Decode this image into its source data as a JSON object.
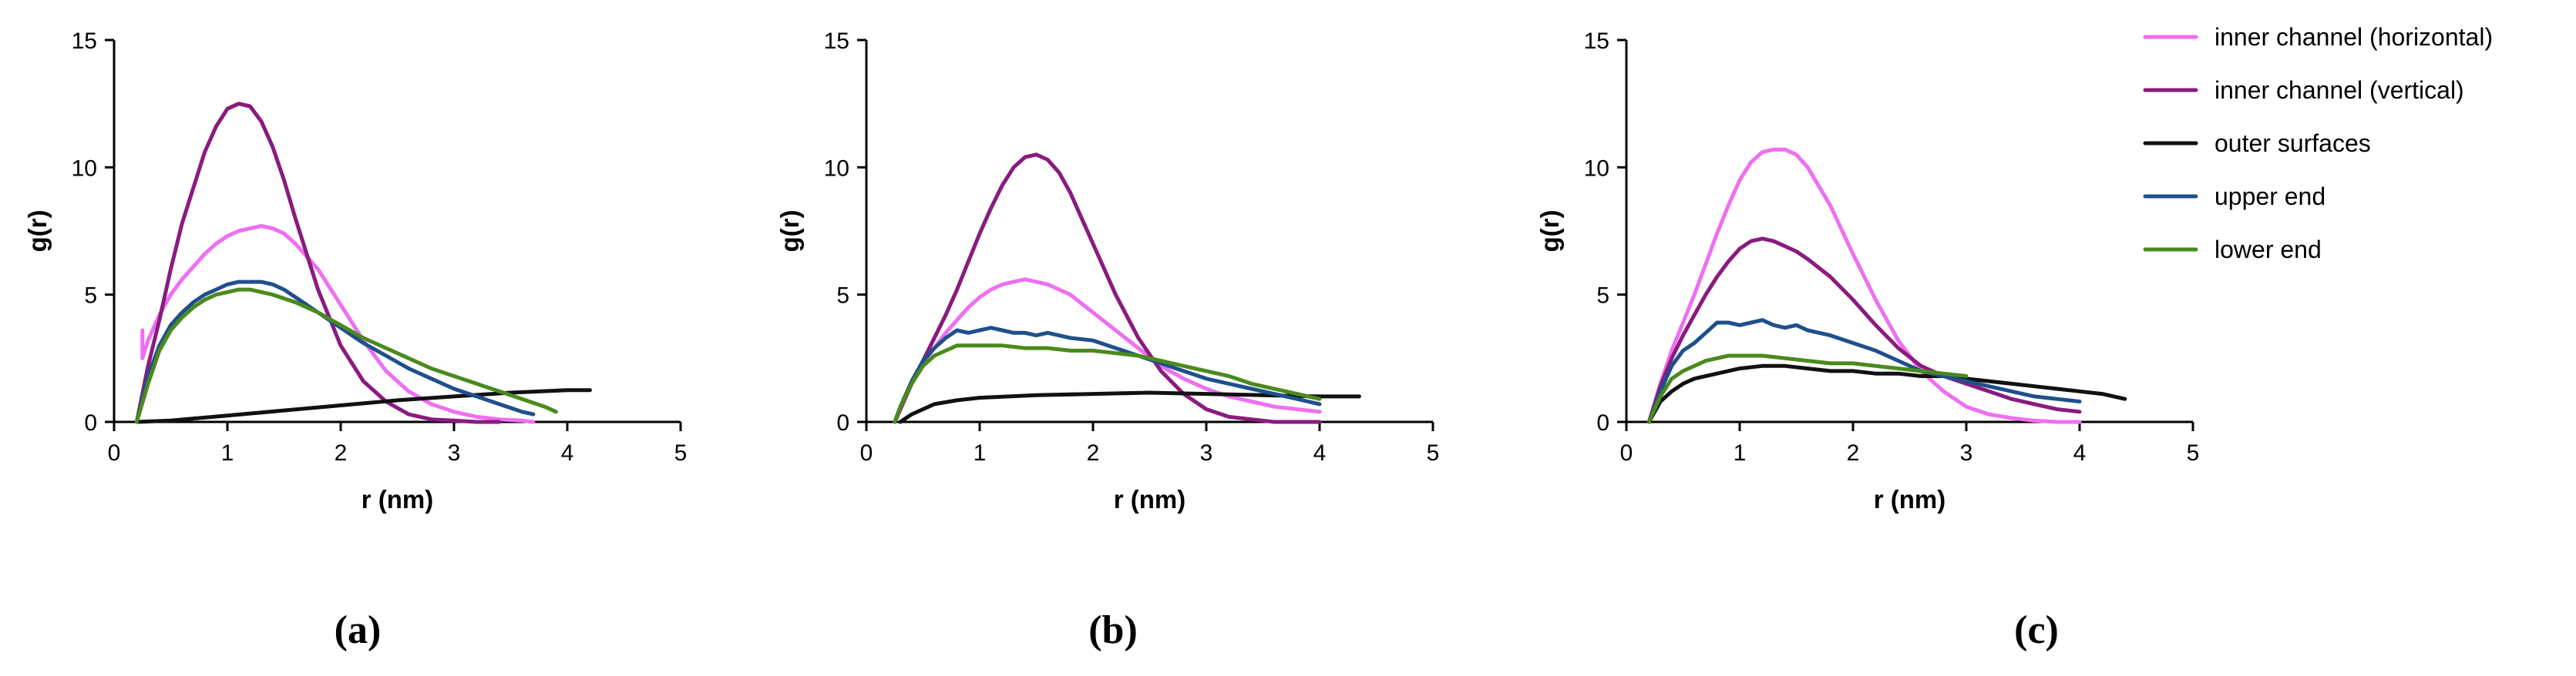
{
  "chart_data": [
    {
      "type": "line",
      "panel_label": "(a)",
      "xlabel": "r (nm)",
      "ylabel": "g(r)",
      "xlim": [
        0,
        5
      ],
      "ylim": [
        0,
        15
      ],
      "xticks": [
        "0",
        "1",
        "2",
        "3",
        "4",
        "5"
      ],
      "yticks": [
        "0",
        "5",
        "10",
        "15"
      ],
      "series": [
        {
          "name": "inner channel (horizontal)",
          "x": [
            0.25,
            0.25,
            0.3,
            0.4,
            0.5,
            0.6,
            0.7,
            0.8,
            0.9,
            1.0,
            1.1,
            1.2,
            1.3,
            1.4,
            1.5,
            1.6,
            1.8,
            2.0,
            2.2,
            2.4,
            2.6,
            2.8,
            3.0,
            3.2,
            3.4,
            3.6,
            3.7
          ],
          "y": [
            3.6,
            2.5,
            3.2,
            4.2,
            5.0,
            5.6,
            6.1,
            6.6,
            7.0,
            7.3,
            7.5,
            7.6,
            7.7,
            7.6,
            7.4,
            7.0,
            6.0,
            4.6,
            3.2,
            2.0,
            1.2,
            0.7,
            0.4,
            0.2,
            0.1,
            0.05,
            0.0
          ]
        },
        {
          "name": "inner channel (vertical)",
          "x": [
            0.2,
            0.3,
            0.4,
            0.5,
            0.6,
            0.7,
            0.8,
            0.9,
            1.0,
            1.1,
            1.2,
            1.3,
            1.4,
            1.5,
            1.6,
            1.8,
            2.0,
            2.2,
            2.4,
            2.6,
            2.8,
            3.0,
            3.2,
            3.4
          ],
          "y": [
            0.0,
            2.2,
            4.0,
            6.0,
            7.8,
            9.2,
            10.6,
            11.6,
            12.3,
            12.5,
            12.4,
            11.8,
            10.8,
            9.5,
            8.0,
            5.2,
            3.0,
            1.6,
            0.8,
            0.3,
            0.1,
            0.05,
            0.0,
            0.0
          ]
        },
        {
          "name": "outer surfaces",
          "x": [
            0.2,
            0.5,
            1.0,
            1.5,
            2.0,
            2.5,
            3.0,
            3.5,
            4.0,
            4.2
          ],
          "y": [
            0.0,
            0.05,
            0.25,
            0.45,
            0.65,
            0.85,
            1.0,
            1.15,
            1.25,
            1.25
          ]
        },
        {
          "name": "upper end",
          "x": [
            0.2,
            0.3,
            0.4,
            0.5,
            0.6,
            0.7,
            0.8,
            0.9,
            1.0,
            1.1,
            1.2,
            1.3,
            1.4,
            1.5,
            1.6,
            1.8,
            2.0,
            2.2,
            2.4,
            2.6,
            2.8,
            3.0,
            3.2,
            3.4,
            3.6,
            3.7
          ],
          "y": [
            0.0,
            1.8,
            3.0,
            3.8,
            4.3,
            4.7,
            5.0,
            5.2,
            5.4,
            5.5,
            5.5,
            5.5,
            5.4,
            5.2,
            4.9,
            4.3,
            3.7,
            3.1,
            2.6,
            2.1,
            1.7,
            1.3,
            1.0,
            0.7,
            0.4,
            0.3
          ]
        },
        {
          "name": "lower end",
          "x": [
            0.2,
            0.3,
            0.4,
            0.5,
            0.6,
            0.7,
            0.8,
            0.9,
            1.0,
            1.1,
            1.2,
            1.4,
            1.6,
            1.8,
            2.0,
            2.2,
            2.4,
            2.6,
            2.8,
            3.0,
            3.2,
            3.4,
            3.6,
            3.8,
            3.9
          ],
          "y": [
            0.0,
            1.5,
            2.8,
            3.6,
            4.1,
            4.5,
            4.8,
            5.0,
            5.1,
            5.2,
            5.2,
            5.0,
            4.7,
            4.3,
            3.8,
            3.3,
            2.9,
            2.5,
            2.1,
            1.8,
            1.5,
            1.2,
            0.9,
            0.6,
            0.4
          ]
        }
      ]
    },
    {
      "type": "line",
      "panel_label": "(b)",
      "xlabel": "r (nm)",
      "ylabel": "g(r)",
      "xlim": [
        0,
        5
      ],
      "ylim": [
        0,
        15
      ],
      "xticks": [
        "0",
        "1",
        "2",
        "3",
        "4",
        "5"
      ],
      "yticks": [
        "0",
        "5",
        "10",
        "15"
      ],
      "series": [
        {
          "name": "inner channel (horizontal)",
          "x": [
            0.25,
            0.3,
            0.4,
            0.5,
            0.6,
            0.7,
            0.8,
            0.9,
            1.0,
            1.1,
            1.2,
            1.3,
            1.4,
            1.5,
            1.6,
            1.8,
            2.0,
            2.2,
            2.4,
            2.6,
            2.8,
            3.0,
            3.2,
            3.4,
            3.6,
            3.8,
            4.0
          ],
          "y": [
            0.0,
            0.5,
            1.5,
            2.3,
            2.9,
            3.5,
            4.0,
            4.5,
            4.9,
            5.2,
            5.4,
            5.5,
            5.6,
            5.5,
            5.4,
            5.0,
            4.3,
            3.6,
            2.9,
            2.2,
            1.7,
            1.3,
            1.0,
            0.8,
            0.6,
            0.5,
            0.4
          ]
        },
        {
          "name": "inner channel (vertical)",
          "x": [
            0.25,
            0.3,
            0.4,
            0.5,
            0.6,
            0.7,
            0.8,
            0.9,
            1.0,
            1.1,
            1.2,
            1.3,
            1.4,
            1.5,
            1.6,
            1.7,
            1.8,
            2.0,
            2.2,
            2.4,
            2.6,
            2.8,
            3.0,
            3.2,
            3.4,
            3.6,
            3.8,
            4.0
          ],
          "y": [
            0.0,
            0.5,
            1.5,
            2.4,
            3.3,
            4.2,
            5.2,
            6.3,
            7.4,
            8.4,
            9.3,
            10.0,
            10.4,
            10.5,
            10.3,
            9.8,
            9.0,
            7.0,
            5.0,
            3.3,
            2.0,
            1.1,
            0.5,
            0.2,
            0.1,
            0.0,
            0.0,
            0.0
          ]
        },
        {
          "name": "outer surfaces",
          "x": [
            0.3,
            0.4,
            0.5,
            0.6,
            0.8,
            1.0,
            1.5,
            2.0,
            2.5,
            3.0,
            3.5,
            4.0,
            4.35
          ],
          "y": [
            0.0,
            0.3,
            0.5,
            0.7,
            0.85,
            0.95,
            1.05,
            1.1,
            1.15,
            1.1,
            1.05,
            1.0,
            1.0
          ]
        },
        {
          "name": "upper end",
          "x": [
            0.25,
            0.3,
            0.4,
            0.5,
            0.6,
            0.7,
            0.8,
            0.9,
            1.0,
            1.1,
            1.2,
            1.3,
            1.4,
            1.5,
            1.6,
            1.8,
            2.0,
            2.2,
            2.4,
            2.6,
            2.8,
            3.0,
            3.2,
            3.4,
            3.6,
            3.8,
            4.0
          ],
          "y": [
            0.0,
            0.6,
            1.6,
            2.4,
            2.9,
            3.3,
            3.6,
            3.5,
            3.6,
            3.7,
            3.6,
            3.5,
            3.5,
            3.4,
            3.5,
            3.3,
            3.2,
            2.9,
            2.6,
            2.3,
            2.0,
            1.7,
            1.5,
            1.3,
            1.1,
            0.9,
            0.7
          ]
        },
        {
          "name": "lower end",
          "x": [
            0.25,
            0.3,
            0.4,
            0.5,
            0.6,
            0.7,
            0.8,
            0.9,
            1.0,
            1.2,
            1.4,
            1.6,
            1.8,
            2.0,
            2.2,
            2.4,
            2.6,
            2.8,
            3.0,
            3.2,
            3.4,
            3.6,
            3.8,
            4.0
          ],
          "y": [
            0.0,
            0.6,
            1.5,
            2.2,
            2.6,
            2.8,
            3.0,
            3.0,
            3.0,
            3.0,
            2.9,
            2.9,
            2.8,
            2.8,
            2.7,
            2.6,
            2.4,
            2.2,
            2.0,
            1.8,
            1.5,
            1.3,
            1.1,
            0.9
          ]
        }
      ]
    },
    {
      "type": "line",
      "panel_label": "(c)",
      "xlabel": "r (nm)",
      "ylabel": "g(r)",
      "xlim": [
        0,
        5
      ],
      "ylim": [
        0,
        15
      ],
      "xticks": [
        "0",
        "1",
        "2",
        "3",
        "4",
        "5"
      ],
      "yticks": [
        "0",
        "5",
        "10",
        "15"
      ],
      "series": [
        {
          "name": "inner channel (horizontal)",
          "x": [
            0.2,
            0.3,
            0.4,
            0.5,
            0.6,
            0.7,
            0.8,
            0.9,
            1.0,
            1.1,
            1.2,
            1.3,
            1.4,
            1.5,
            1.6,
            1.8,
            2.0,
            2.2,
            2.4,
            2.6,
            2.8,
            3.0,
            3.2,
            3.4,
            3.6,
            3.8,
            4.0
          ],
          "y": [
            0.0,
            1.5,
            2.8,
            3.9,
            5.0,
            6.2,
            7.4,
            8.5,
            9.5,
            10.2,
            10.6,
            10.7,
            10.7,
            10.5,
            10.0,
            8.5,
            6.6,
            4.8,
            3.2,
            2.0,
            1.2,
            0.6,
            0.3,
            0.15,
            0.05,
            0.0,
            0.0
          ]
        },
        {
          "name": "inner channel (vertical)",
          "x": [
            0.2,
            0.3,
            0.4,
            0.5,
            0.6,
            0.7,
            0.8,
            0.9,
            1.0,
            1.1,
            1.2,
            1.3,
            1.4,
            1.5,
            1.6,
            1.8,
            2.0,
            2.2,
            2.4,
            2.6,
            2.8,
            3.0,
            3.2,
            3.4,
            3.6,
            3.8,
            4.0
          ],
          "y": [
            0.0,
            1.4,
            2.5,
            3.4,
            4.2,
            5.0,
            5.7,
            6.3,
            6.8,
            7.1,
            7.2,
            7.1,
            6.9,
            6.7,
            6.4,
            5.7,
            4.8,
            3.8,
            2.9,
            2.2,
            1.8,
            1.5,
            1.2,
            0.9,
            0.7,
            0.5,
            0.4
          ]
        },
        {
          "name": "outer surfaces",
          "x": [
            0.2,
            0.3,
            0.4,
            0.5,
            0.6,
            0.8,
            1.0,
            1.2,
            1.4,
            1.6,
            1.8,
            2.0,
            2.2,
            2.4,
            2.6,
            2.8,
            3.0,
            3.2,
            3.4,
            3.6,
            3.8,
            4.0,
            4.2,
            4.4
          ],
          "y": [
            0.0,
            0.8,
            1.2,
            1.5,
            1.7,
            1.9,
            2.1,
            2.2,
            2.2,
            2.1,
            2.0,
            2.0,
            1.9,
            1.9,
            1.8,
            1.8,
            1.7,
            1.6,
            1.5,
            1.4,
            1.3,
            1.2,
            1.1,
            0.9
          ]
        },
        {
          "name": "upper end",
          "x": [
            0.2,
            0.3,
            0.4,
            0.5,
            0.6,
            0.7,
            0.8,
            0.9,
            1.0,
            1.1,
            1.2,
            1.3,
            1.4,
            1.5,
            1.6,
            1.8,
            2.0,
            2.2,
            2.4,
            2.6,
            2.8,
            3.0,
            3.2,
            3.4,
            3.6,
            3.8,
            4.0
          ],
          "y": [
            0.0,
            1.2,
            2.2,
            2.8,
            3.1,
            3.5,
            3.9,
            3.9,
            3.8,
            3.9,
            4.0,
            3.8,
            3.7,
            3.8,
            3.6,
            3.4,
            3.1,
            2.8,
            2.4,
            2.0,
            1.8,
            1.6,
            1.4,
            1.2,
            1.0,
            0.9,
            0.8
          ]
        },
        {
          "name": "lower end",
          "x": [
            0.2,
            0.3,
            0.4,
            0.5,
            0.6,
            0.7,
            0.8,
            0.9,
            1.0,
            1.2,
            1.4,
            1.6,
            1.8,
            2.0,
            2.2,
            2.4,
            2.6,
            2.8,
            3.0
          ],
          "y": [
            0.0,
            1.0,
            1.7,
            2.0,
            2.2,
            2.4,
            2.5,
            2.6,
            2.6,
            2.6,
            2.5,
            2.4,
            2.3,
            2.3,
            2.2,
            2.1,
            2.0,
            1.9,
            1.8
          ]
        }
      ]
    }
  ],
  "legend": {
    "position": "top-right",
    "items": [
      {
        "label": "inner channel (horizontal)",
        "color": "#ee6ff0"
      },
      {
        "label": "inner channel (vertical)",
        "color": "#8a1b7f"
      },
      {
        "label": "outer surfaces",
        "color": "#111111"
      },
      {
        "label": "upper end",
        "color": "#1f4f8c"
      },
      {
        "label": "lower end",
        "color": "#4a8a1d"
      }
    ]
  },
  "series_colors": [
    "#ee6ff0",
    "#8a1b7f",
    "#111111",
    "#1f4f8c",
    "#4a8a1d"
  ]
}
